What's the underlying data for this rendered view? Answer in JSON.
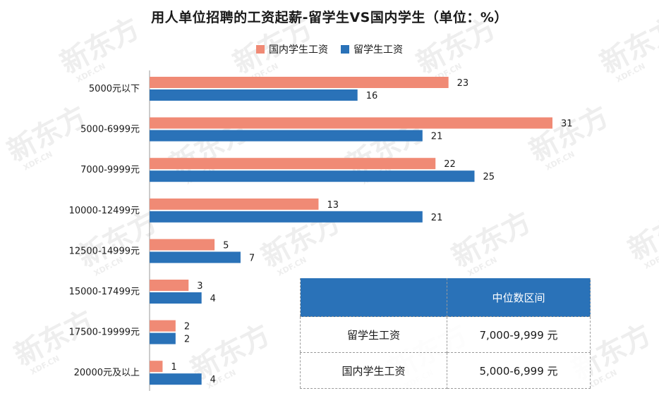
{
  "title": "用人单位招聘的工资起薪-留学生VS国内学生（单位：%）",
  "watermark": {
    "logo_text": "新东方",
    "site_text": "XDF.CN"
  },
  "colors": {
    "domestic": "#f08a75",
    "overseas": "#2a72b8"
  },
  "chart_data": {
    "type": "bar",
    "orientation": "horizontal",
    "categories": [
      "5000元以下",
      "5000-6999元",
      "7000-9999元",
      "10000-12499元",
      "12500-14999元",
      "15000-17499元",
      "17500-19999元",
      "20000元及以上"
    ],
    "series": [
      {
        "name": "国内学生工资",
        "values": [
          23,
          31,
          22,
          13,
          5,
          3,
          2,
          1
        ]
      },
      {
        "name": "留学生工资",
        "values": [
          16,
          21,
          25,
          21,
          7,
          4,
          2,
          4
        ]
      }
    ],
    "xlim": [
      0,
      31
    ],
    "grid": false,
    "legend_position": "top-center"
  },
  "median_table": {
    "header": [
      "",
      "中位数区间"
    ],
    "rows": [
      [
        "留学生工资",
        "7,000-9,999 元"
      ],
      [
        "国内学生工资",
        "5,000-6,999 元"
      ]
    ]
  }
}
